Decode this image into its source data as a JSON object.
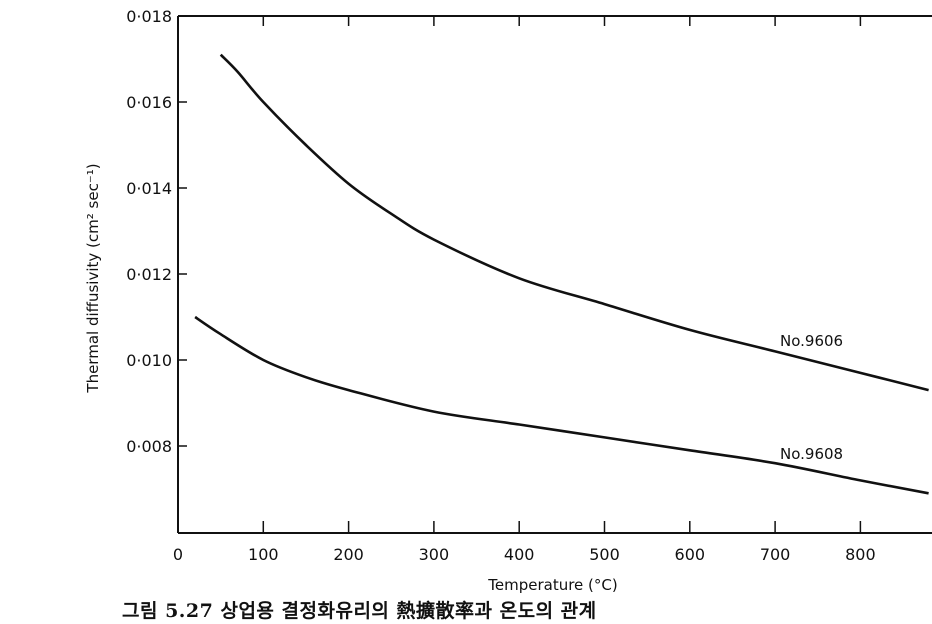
{
  "caption": "그림 5.27 상업용 결정화유리의 熱擴散率과 온도의 관계",
  "chart_data": {
    "type": "line",
    "xlabel": "Temperature (°C)",
    "ylabel": "Thermal diffusivity (cm² sec⁻¹)",
    "xlim": [
      0,
      880
    ],
    "ylim": [
      0.006,
      0.018
    ],
    "x_ticks": [
      "0",
      "100",
      "200",
      "300",
      "400",
      "500",
      "600",
      "700",
      "800"
    ],
    "y_ticks": [
      "0·008",
      "0·010",
      "0·012",
      "0·014",
      "0·016",
      "0·018"
    ],
    "series": [
      {
        "name": "No.9606",
        "x": [
          50,
          70,
          100,
          150,
          200,
          250,
          300,
          400,
          500,
          600,
          700,
          800,
          880
        ],
        "y": [
          0.0171,
          0.0167,
          0.016,
          0.015,
          0.0141,
          0.0134,
          0.0128,
          0.0119,
          0.0113,
          0.0107,
          0.0102,
          0.0097,
          0.0093
        ]
      },
      {
        "name": "No.9608",
        "x": [
          20,
          50,
          100,
          150,
          200,
          300,
          400,
          500,
          600,
          700,
          800,
          880
        ],
        "y": [
          0.011,
          0.0106,
          0.01,
          0.0096,
          0.0093,
          0.0088,
          0.0085,
          0.0082,
          0.0079,
          0.0076,
          0.0072,
          0.0069
        ]
      }
    ]
  }
}
